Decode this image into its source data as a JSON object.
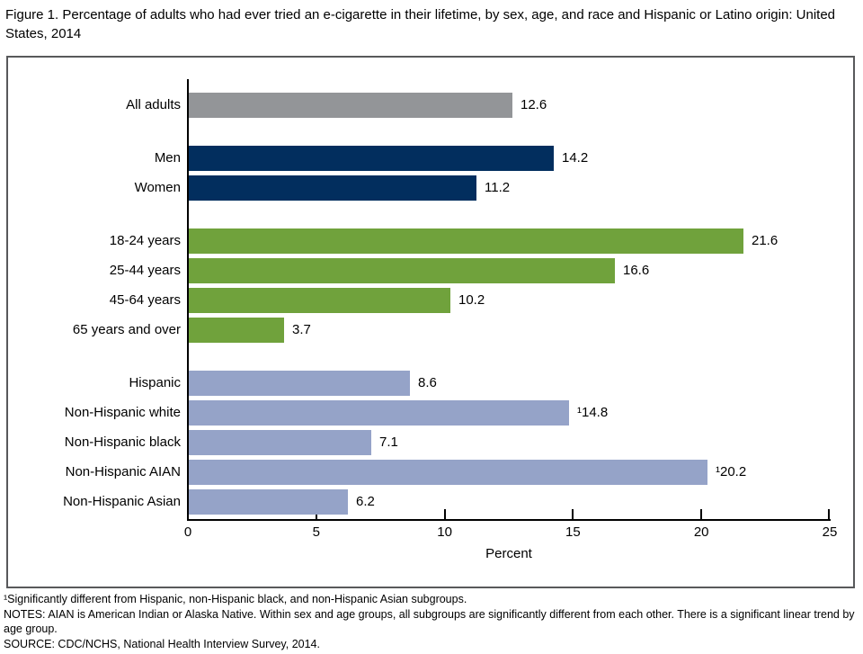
{
  "title": "Figure 1. Percentage of adults who had ever tried an e-cigarette in their lifetime, by sex, age, and race and Hispanic or Latino origin: United States, 2014",
  "chart_data": {
    "type": "bar",
    "orientation": "horizontal",
    "title": "Percentage of adults who had ever tried an e-cigarette in their lifetime, by sex, age, and race and Hispanic or Latino origin: United States, 2014",
    "xlabel": "Percent",
    "xlim": [
      0,
      25
    ],
    "x_ticks": [
      "0",
      "5",
      "10",
      "15",
      "20",
      "25"
    ],
    "grid": false,
    "legend": "none",
    "groups": [
      {
        "name": "overall",
        "color": "#939598",
        "rows": [
          {
            "label": "All adults",
            "value": 12.6,
            "display": "12.6"
          }
        ]
      },
      {
        "name": "sex",
        "color": "#022e5e",
        "rows": [
          {
            "label": "Men",
            "value": 14.2,
            "display": "14.2"
          },
          {
            "label": "Women",
            "value": 11.2,
            "display": "11.2"
          }
        ]
      },
      {
        "name": "age",
        "color": "#70a23c",
        "rows": [
          {
            "label": "18-24 years",
            "value": 21.6,
            "display": "21.6"
          },
          {
            "label": "25-44 years",
            "value": 16.6,
            "display": "16.6"
          },
          {
            "label": "45-64 years",
            "value": 10.2,
            "display": "10.2"
          },
          {
            "label": "65 years and over",
            "value": 3.7,
            "display": "3.7"
          }
        ]
      },
      {
        "name": "race-hispanic-origin",
        "color": "#95a3c8",
        "rows": [
          {
            "label": "Hispanic",
            "value": 8.6,
            "display": "8.6"
          },
          {
            "label": "Non-Hispanic white",
            "value": 14.8,
            "display": "¹14.8"
          },
          {
            "label": "Non-Hispanic black",
            "value": 7.1,
            "display": "7.1"
          },
          {
            "label": "Non-Hispanic AIAN",
            "value": 20.2,
            "display": "¹20.2"
          },
          {
            "label": "Non-Hispanic Asian",
            "value": 6.2,
            "display": "6.2"
          }
        ]
      }
    ]
  },
  "footnotes": {
    "footnote1": "¹Significantly different from Hispanic, non-Hispanic black, and non-Hispanic Asian subgroups.",
    "notes": "NOTES: AIAN is American Indian or Alaska Native. Within sex and age groups, all subgroups are significantly different from each other. There is a significant linear trend by age group.",
    "source": "SOURCE: CDC/NCHS, National Health Interview Survey, 2014."
  }
}
